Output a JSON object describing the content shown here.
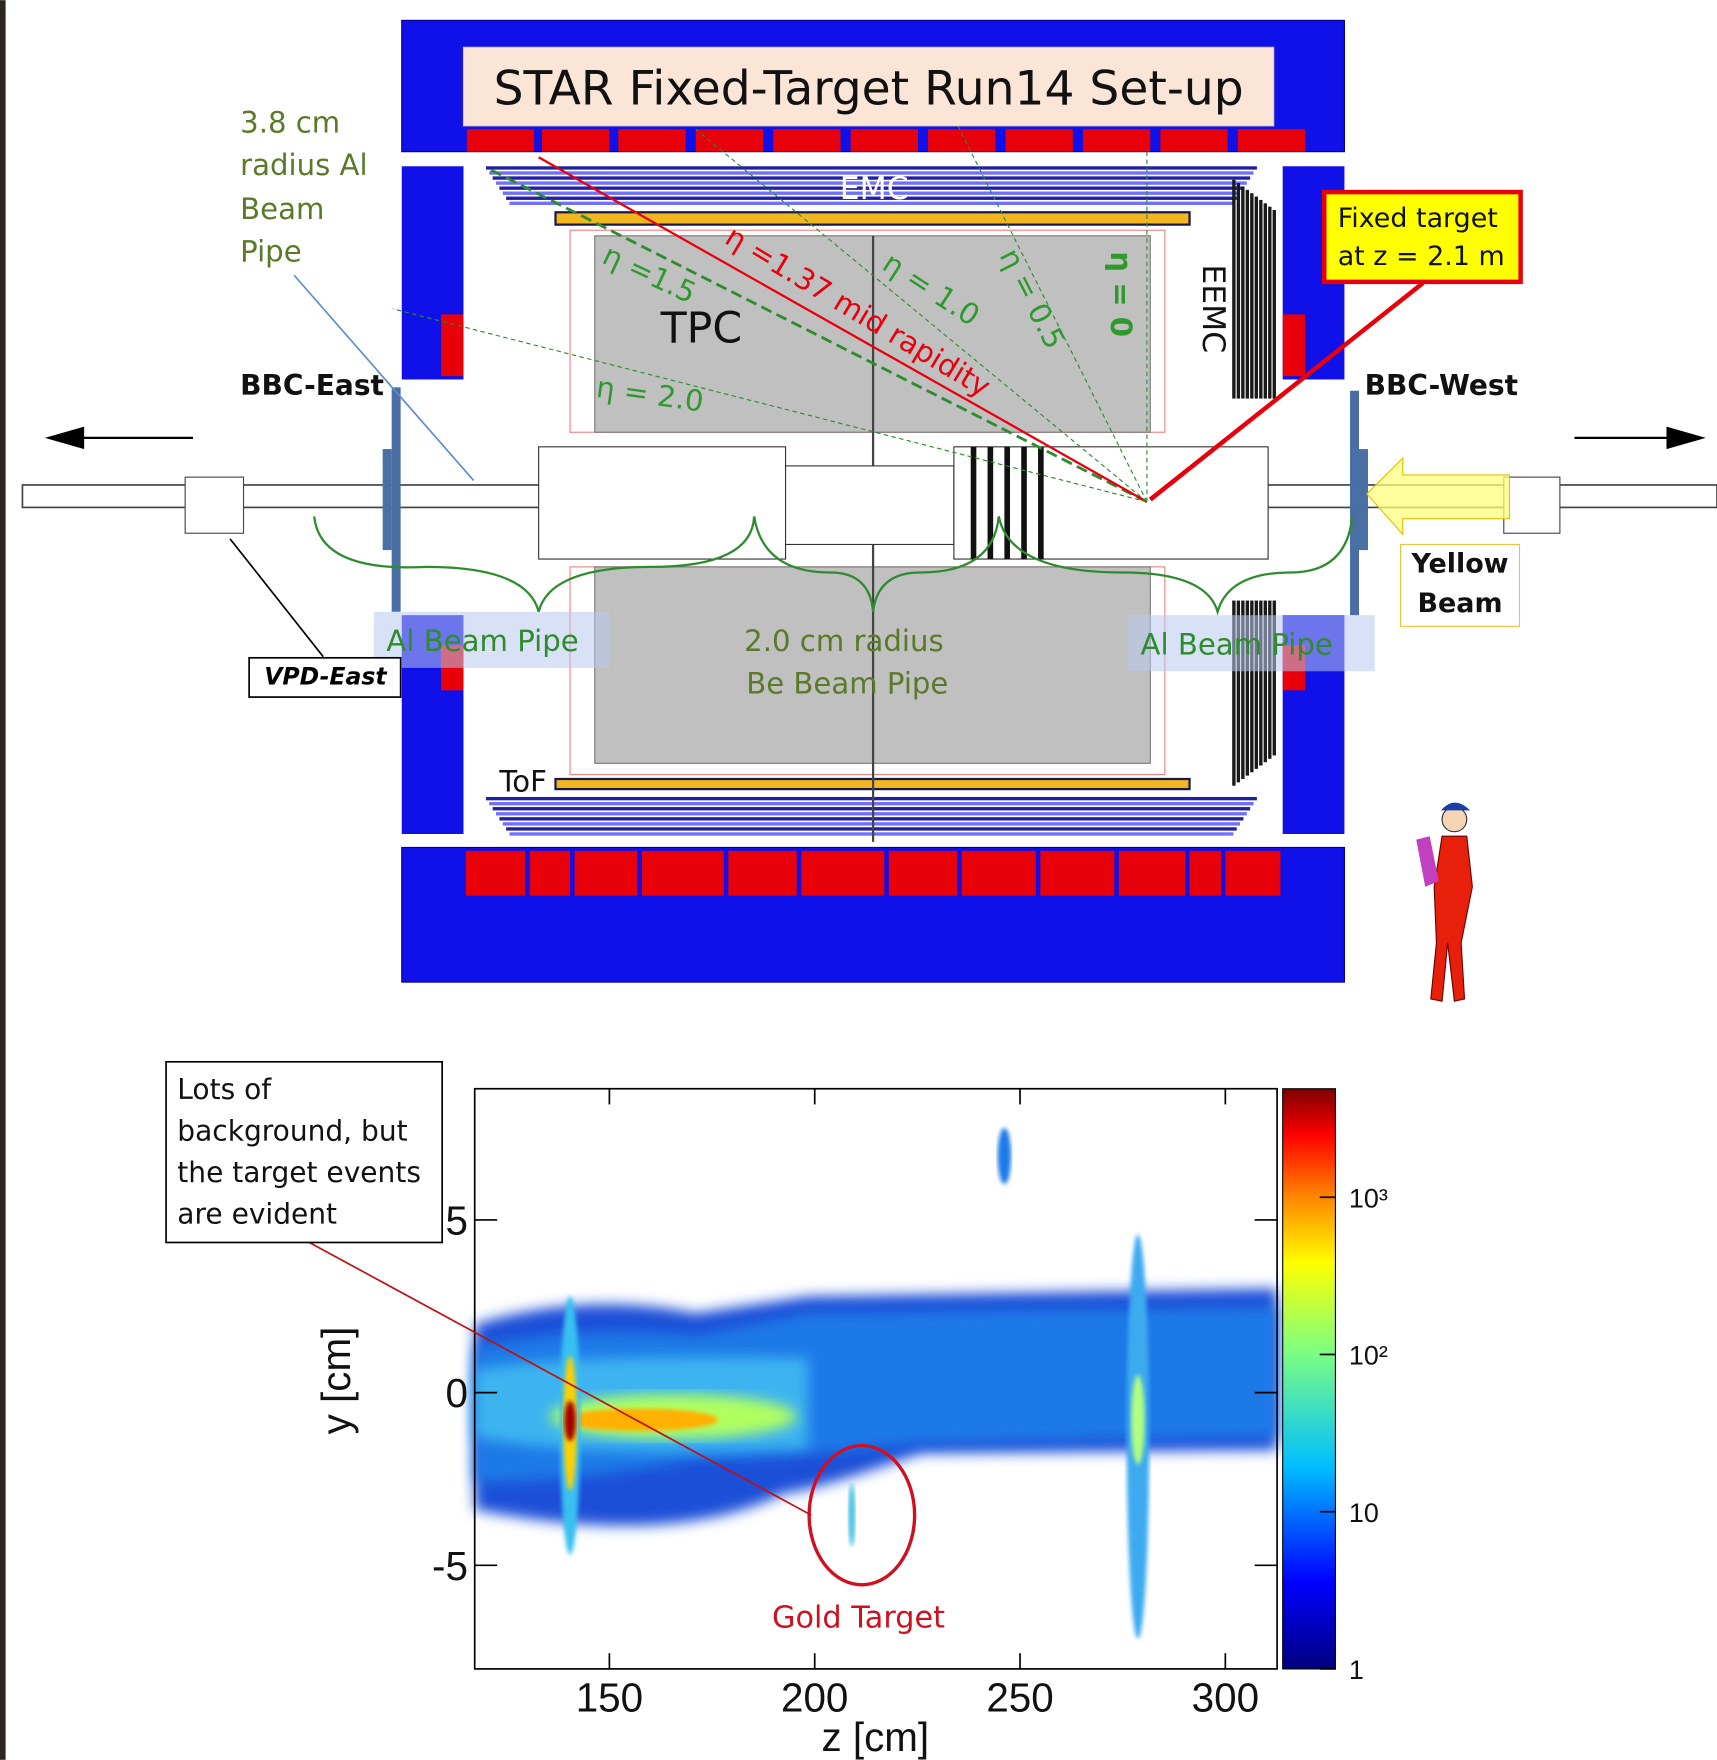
{
  "title": "STAR Fixed-Target Run14 Set-up",
  "detectors": {
    "emc": "EMC",
    "tpc": "TPC",
    "eemc": "EEMC",
    "tof": "ToF",
    "bbc_east": "BBC-East",
    "bbc_west": "BBC-West",
    "vpd_east": "VPD-East"
  },
  "eta_lines": [
    "η =1.5",
    "η =1.37 mid rapidity",
    "η = 1.0",
    "η = 0.5",
    "η = 0",
    "η = 2.0"
  ],
  "callouts": {
    "al_pipe_radius": [
      "3.8 cm",
      "radius Al",
      "Beam",
      "Pipe"
    ],
    "fixed_target": [
      "Fixed target",
      "at z = 2.1 m"
    ],
    "yellow_beam": [
      "Yellow",
      "Beam"
    ],
    "al_beam_pipe_east": "Al Beam Pipe",
    "al_beam_pipe_west": "Al Beam Pipe",
    "be_beam_pipe": [
      "2.0 cm radius",
      "Be Beam Pipe"
    ]
  },
  "plot": {
    "xlabel": "z [cm]",
    "ylabel": "y [cm]",
    "xlim": [
      117.2,
      312.6
    ],
    "xticks": [
      150,
      200,
      250,
      300
    ],
    "ylim": [
      -8,
      8.8
    ],
    "yticks": [
      -5,
      0,
      5
    ],
    "colorbar": {
      "log": true,
      "lim": [
        1,
        4900
      ],
      "ticks": [
        1,
        10,
        {
          "value": 100,
          "label": "10²"
        },
        {
          "value": 1000,
          "label": "10³"
        }
      ]
    },
    "annotation": [
      "Lots of",
      "background, but",
      "the target events",
      "are evident"
    ],
    "target_label": "Gold Target"
  }
}
